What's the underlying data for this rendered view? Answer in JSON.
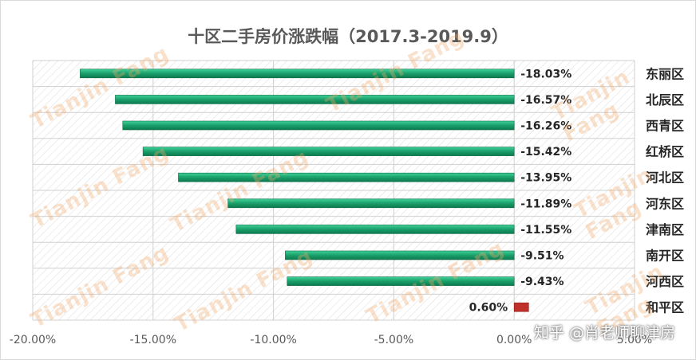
{
  "chart_data": {
    "type": "bar",
    "orientation": "horizontal",
    "title": "十区二手房价涨跌幅（2017.3-2019.9）",
    "categories": [
      "东丽区",
      "北辰区",
      "西青区",
      "红桥区",
      "河北区",
      "河东区",
      "津南区",
      "南开区",
      "河西区",
      "和平区"
    ],
    "values": [
      -18.03,
      -16.57,
      -16.26,
      -15.42,
      -13.95,
      -11.89,
      -11.55,
      -9.51,
      -9.43,
      0.6
    ],
    "data_labels": [
      "-18.03%",
      "-16.57%",
      "-16.26%",
      "-15.42%",
      "-13.95%",
      "-11.89%",
      "-11.55%",
      "-9.51%",
      "-9.43%",
      "0.60%"
    ],
    "x_ticks": [
      -20,
      -15,
      -10,
      -5,
      0,
      5
    ],
    "x_tick_labels": [
      "-20.00%",
      "-15.00%",
      "-10.00%",
      "-5.00%",
      "0.00%",
      "5.00%"
    ],
    "xlim": [
      -20,
      5
    ],
    "grid": true,
    "colors": {
      "negative": "#1a9e6a",
      "positive": "#c0302a"
    }
  },
  "watermark": "Tianjin Fang",
  "credit": "知乎 @肖老师聊津房"
}
